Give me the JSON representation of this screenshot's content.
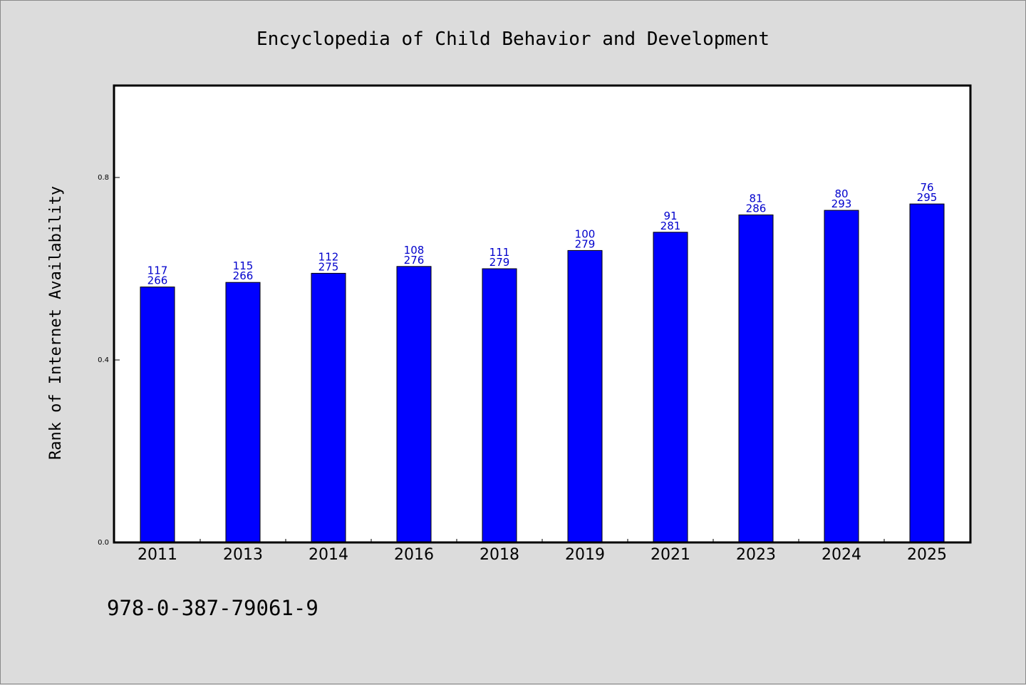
{
  "chart_data": {
    "type": "bar",
    "title": "Encyclopedia of Child Behavior and Development",
    "ylabel": "Rank of Internet Availability",
    "xlabel": "",
    "ylim": [
      0,
      1.0
    ],
    "yticks": [
      0.0,
      0.4,
      0.8
    ],
    "ytick_labels": [
      "0.0",
      "0.4",
      "0.8"
    ],
    "grid": false,
    "categories": [
      "2011",
      "2013",
      "2014",
      "2016",
      "2018",
      "2019",
      "2021",
      "2023",
      "2024",
      "2025"
    ],
    "values": [
      0.56,
      0.57,
      0.59,
      0.605,
      0.6,
      0.64,
      0.68,
      0.718,
      0.728,
      0.742
    ],
    "labels_top": [
      "117",
      "115",
      "112",
      "108",
      "111",
      "100",
      "91",
      "81",
      "80",
      "76"
    ],
    "labels_bottom": [
      "266",
      "266",
      "275",
      "276",
      "279",
      "279",
      "281",
      "286",
      "293",
      "295"
    ],
    "footer": "978-0-387-79061-9",
    "colors": {
      "bar": "#0000ff",
      "bar_label": "#0000cc",
      "background": "#dcdcdc",
      "plot_background": "#ffffff"
    }
  }
}
